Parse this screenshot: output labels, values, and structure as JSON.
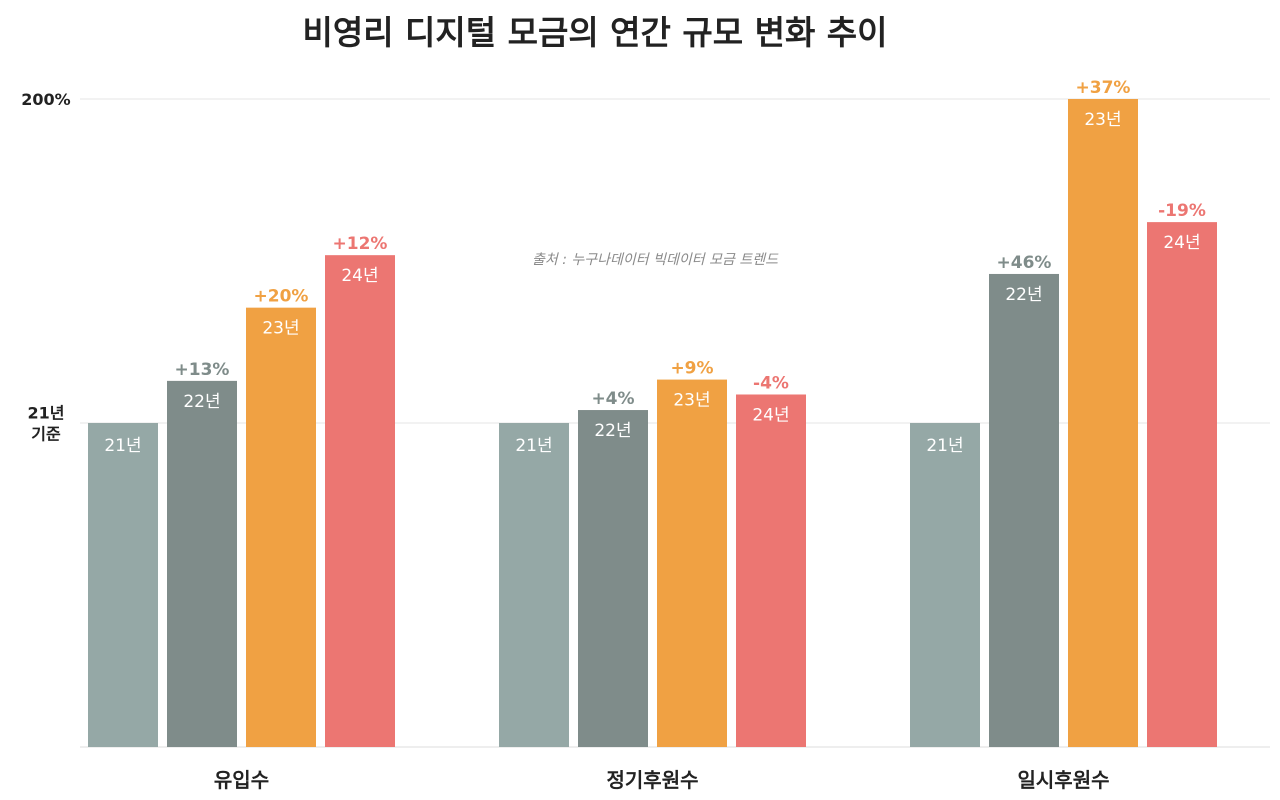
{
  "chart_data": {
    "type": "bar",
    "title": "비영리 디지털 모금의 연간 규모 변화 추이",
    "source": "출처 : 누구나데이터 빅데이터 모금 트렌드",
    "yaxis": {
      "ticks": [
        {
          "value": 100,
          "lines": [
            "21년",
            "기준"
          ]
        },
        {
          "value": 200,
          "lines": [
            "200%"
          ]
        }
      ],
      "ylim": [
        0,
        200
      ],
      "grid": true
    },
    "categories": [
      "유입수",
      "정기후원수",
      "일시후원수"
    ],
    "series": [
      {
        "name": "21년",
        "color": "#95a8a6",
        "values": [
          100,
          100,
          100
        ],
        "changes": [
          "",
          "",
          ""
        ]
      },
      {
        "name": "22년",
        "color": "#7f8c8a",
        "values": [
          113,
          104,
          146
        ],
        "changes": [
          "+13%",
          "+4%",
          "+46%"
        ]
      },
      {
        "name": "23년",
        "color": "#f0a143",
        "values": [
          135.6,
          113.4,
          200
        ],
        "changes": [
          "+20%",
          "+9%",
          "+37%"
        ]
      },
      {
        "name": "24년",
        "color": "#ec7672",
        "values": [
          151.8,
          108.8,
          162
        ],
        "changes": [
          "+12%",
          "-4%",
          "-19%"
        ]
      }
    ]
  }
}
